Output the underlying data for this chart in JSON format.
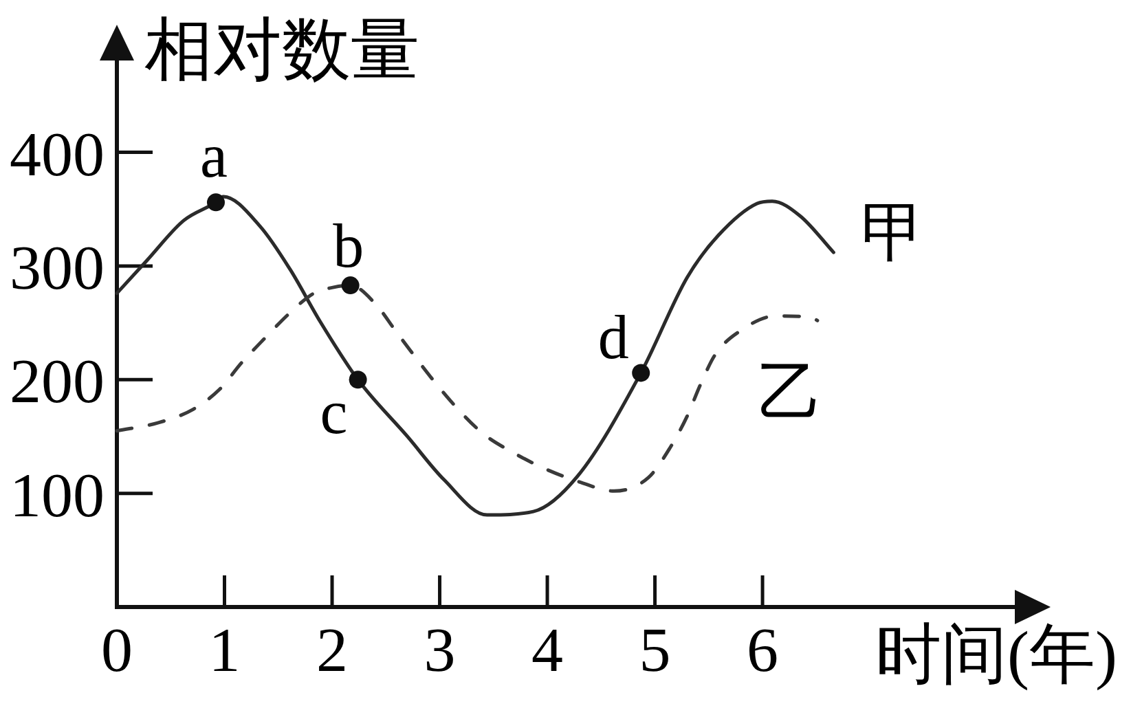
{
  "chart_data": {
    "type": "line",
    "xlabel": "时间(年)",
    "ylabel": "相对数量",
    "xlim": [
      0,
      8.6
    ],
    "ylim": [
      0,
      505
    ],
    "xticks": [
      0,
      1,
      2,
      3,
      4,
      5,
      6
    ],
    "yticks": [
      100,
      200,
      300,
      400
    ],
    "grid": false,
    "legend": false,
    "series": [
      {
        "name": "甲",
        "color": "#2b2b2b",
        "line_style": "solid",
        "x": [
          0,
          0.28,
          0.62,
          0.92,
          0.99,
          1.33,
          1.61,
          1.89,
          2.24,
          2.7,
          3.04,
          3.44,
          3.87,
          4.28,
          4.87,
          5.3,
          5.59,
          5.95,
          6.09,
          6.35,
          6.66
        ],
        "values": [
          276,
          305,
          340,
          356,
          361,
          335,
          297,
          251,
          200,
          150,
          112,
          81,
          84,
          115,
          206,
          290,
          327,
          355,
          357,
          344,
          312
        ]
      },
      {
        "name": "乙",
        "color": "#3a3a3a",
        "line_style": "dashed",
        "x": [
          0,
          0.38,
          0.71,
          0.96,
          1.16,
          1.38,
          1.61,
          1.83,
          2.0,
          2.17,
          2.4,
          2.59,
          2.78,
          2.97,
          3.18,
          3.41,
          3.68,
          3.97,
          4.3,
          4.62,
          4.94,
          5.14,
          5.3,
          5.42,
          5.56,
          5.81,
          6.12,
          6.45,
          6.51
        ],
        "values": [
          155,
          162,
          174,
          192,
          215,
          237,
          259,
          276,
          281,
          283,
          267,
          243,
          219,
          196,
          173,
          152,
          136,
          122,
          110,
          102,
          114,
          140,
          168,
          195,
          222,
          244,
          256,
          255,
          252
        ]
      },
      {
        "type": "scatter",
        "color": "#111111",
        "marker": "circle",
        "x": [
          0.92,
          2.17,
          2.24,
          4.87
        ],
        "values": [
          356,
          283,
          200,
          206
        ]
      }
    ],
    "annotations": [
      {
        "text": "a",
        "x": 0.92,
        "y": 356
      },
      {
        "text": "b",
        "x": 2.17,
        "y": 283
      },
      {
        "text": "c",
        "x": 2.24,
        "y": 200
      },
      {
        "text": "d",
        "x": 4.87,
        "y": 206
      }
    ]
  }
}
